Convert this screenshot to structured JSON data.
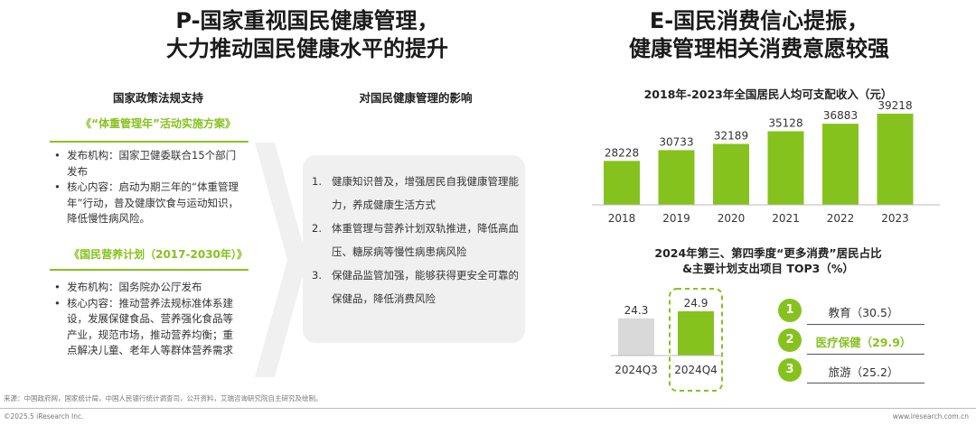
{
  "left": {
    "title_line1": "P-国家重视国民健康管理，",
    "title_line2": "大力推动国民健康水平的提升",
    "policy_header": "国家政策法规支持",
    "impact_header": "对国民健康管理的影响",
    "policy1": {
      "title": "《“体重管理年”活动实施方案》",
      "bullets": [
        "发布机构：国家卫健委联合15个部门发布",
        "核心内容：启动为期三年的“体重管理年”行动，普及健康饮食与运动知识，降低慢性病风险。"
      ]
    },
    "policy2": {
      "title": "《国民营养计划（2017-2030年）》",
      "bullets": [
        "发布机构：国务院办公厅发布",
        "核心内容：推动营养法规标准体系建设，发展保健食品、营养强化食品等产业，规范市场，推动营养均衡；重点解决儿童、老年人等群体营养需求"
      ]
    },
    "impacts": [
      {
        "num": "1.",
        "text": "健康知识普及，增强居民自我健康管理能力，养成健康生活方式"
      },
      {
        "num": "2.",
        "text": "体重管理与营养计划双轨推进，降低高血压、糖尿病等慢性病患病风险"
      },
      {
        "num": "3.",
        "text": "保健品监管加强，能够获得更安全可靠的保健品，降低消费风险"
      }
    ]
  },
  "right": {
    "title_line1": "E-国民消费信心提振，",
    "title_line2": "健康管理相关消费意愿较强"
  },
  "chart_data": [
    {
      "type": "bar",
      "title": "2018年-2023年全国居民人均可支配收入（元）",
      "categories": [
        "2018",
        "2019",
        "2020",
        "2021",
        "2022",
        "2023"
      ],
      "values": [
        28228,
        30733,
        32189,
        35128,
        36883,
        39218
      ],
      "colors": {
        "bar": "#86c21e"
      }
    },
    {
      "type": "bar",
      "title_line1": "2024年第三、第四季度“更多消费”居民占比",
      "title_line2": "&主要计划支出项目 TOP3（%）",
      "categories": [
        "2024Q3",
        "2024Q4"
      ],
      "values": [
        24.3,
        24.9
      ],
      "colors": {
        "q3": "#d9d9d9",
        "q4": "#86c21e"
      },
      "top3": [
        {
          "rank": "1",
          "label": "教育（30.5）",
          "value": 30.5,
          "highlight": false
        },
        {
          "rank": "2",
          "label": "医疗保健（29.9）",
          "value": 29.9,
          "highlight": true
        },
        {
          "rank": "3",
          "label": "旅游（25.2）",
          "value": 25.2,
          "highlight": false
        }
      ]
    }
  ],
  "footer": {
    "source": "来源：中国政府网，国家统计局，中国人民银行统计调查司，公开资料，艾瑞咨询研究院自主研究及绘制。",
    "copyright": "©2025.5 iResearch Inc.",
    "website": "www.iresearch.com.cn"
  },
  "colors": {
    "accent": "#86c21e",
    "gray_bar": "#d9d9d9",
    "panel": "#f0f0f0"
  }
}
